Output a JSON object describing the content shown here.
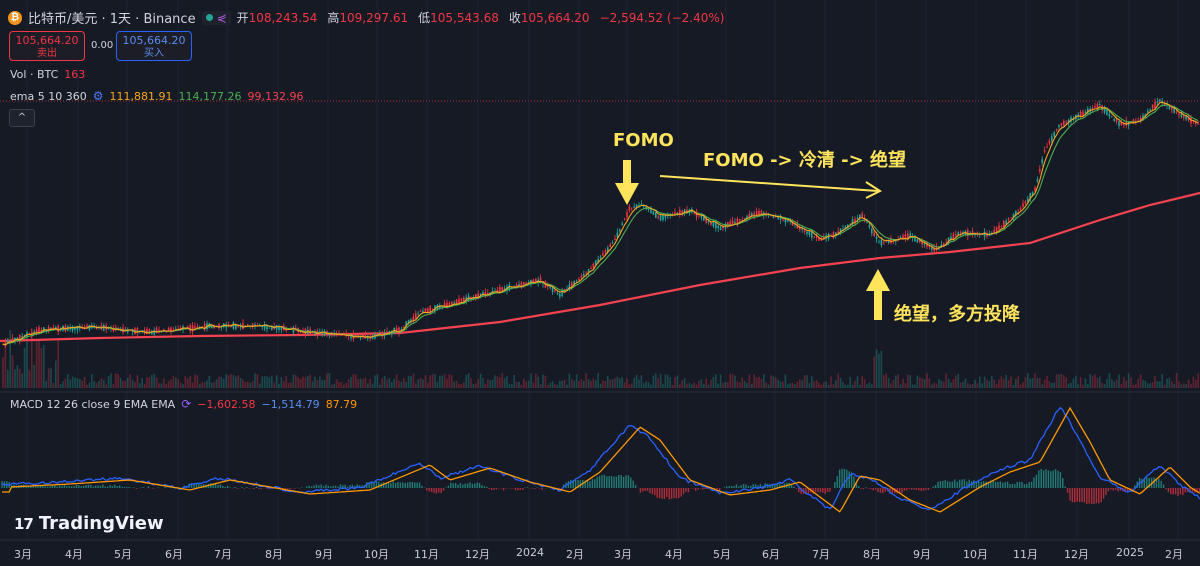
{
  "symbol": {
    "title": "比特币/美元 · 1天 · Binance",
    "open_label": "开",
    "open": "108,243.54",
    "high_label": "高",
    "high": "109,297.61",
    "low_label": "低",
    "low": "105,543.68",
    "close_label": "收",
    "close": "105,664.20",
    "change": "−2,594.52 (−2.40%)"
  },
  "trade": {
    "sell_price": "105,664.20",
    "sell_label": "卖出",
    "spread": "0.00",
    "buy_price": "105,664.20",
    "buy_label": "买入"
  },
  "indicators": {
    "vol_label": "Vol · BTC",
    "vol_value": "163",
    "ema_label": "ema 5 10 360",
    "ema5": "111,881.91",
    "ema10": "114,177.26",
    "ema360": "99,132.96",
    "macd_label": "MACD 12 26 close 9 EMA EMA",
    "macd_hist": "−1,602.58",
    "macd_line": "−1,514.79",
    "macd_signal": "87.79"
  },
  "annotations": {
    "fomo": "FOMO",
    "trend": "FOMO -> 冷清 -> 绝望",
    "despair": "绝望，多方投降"
  },
  "x_axis": [
    "3月",
    "4月",
    "5月",
    "6月",
    "7月",
    "8月",
    "9月",
    "10月",
    "11月",
    "12月",
    "2024",
    "2月",
    "3月",
    "4月",
    "5月",
    "6月",
    "7月",
    "8月",
    "9月",
    "10月",
    "11月",
    "12月",
    "2025",
    "2月"
  ],
  "brand": "TradingView",
  "colors": {
    "up": "#26a69a",
    "down": "#f23645",
    "ema5": "#f5a623",
    "ema10": "#4caf50",
    "ema360": "#f4434f",
    "macd": "#2962ff",
    "signal": "#ff9800",
    "annotation": "#ffe45c"
  }
}
